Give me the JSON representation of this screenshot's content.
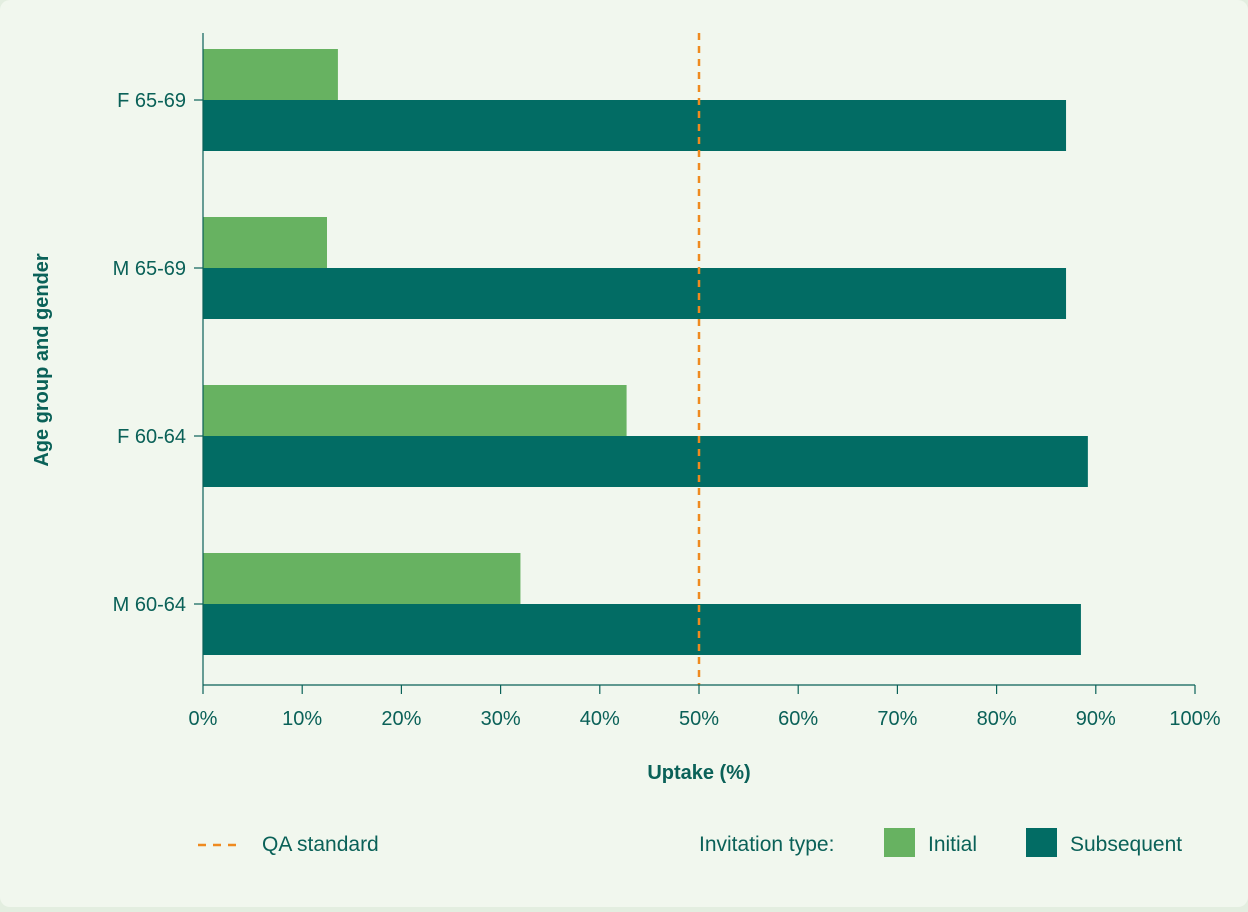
{
  "chart_data": {
    "type": "bar",
    "orientation": "horizontal",
    "categories": [
      "M 60-64",
      "F 60-64",
      "M 65-69",
      "F 65-69"
    ],
    "series": [
      {
        "name": "Initial",
        "values": [
          32,
          42.7,
          12.5,
          13.6
        ],
        "color": "#67b261"
      },
      {
        "name": "Subsequent",
        "values": [
          88.5,
          89.2,
          87,
          87
        ]
      }
    ],
    "xlabel": "Uptake (%)",
    "ylabel": "Age group and gender",
    "xlim": [
      0,
      100
    ],
    "x_ticks": [
      "0%",
      "10%",
      "20%",
      "30%",
      "40%",
      "50%",
      "60%",
      "70%",
      "80%",
      "90%",
      "100%"
    ],
    "reference_line": {
      "label": "QA standard",
      "value": 50,
      "color": "#ef8a1f",
      "style": "dashed"
    },
    "legend": {
      "position": "bottom",
      "title": "Invitation type:",
      "entries": [
        "Initial",
        "Subsequent"
      ]
    },
    "colors": {
      "subsequent": "#026c64",
      "axis": "#0a6158",
      "background": "#f1f7ee"
    },
    "grid": false
  }
}
